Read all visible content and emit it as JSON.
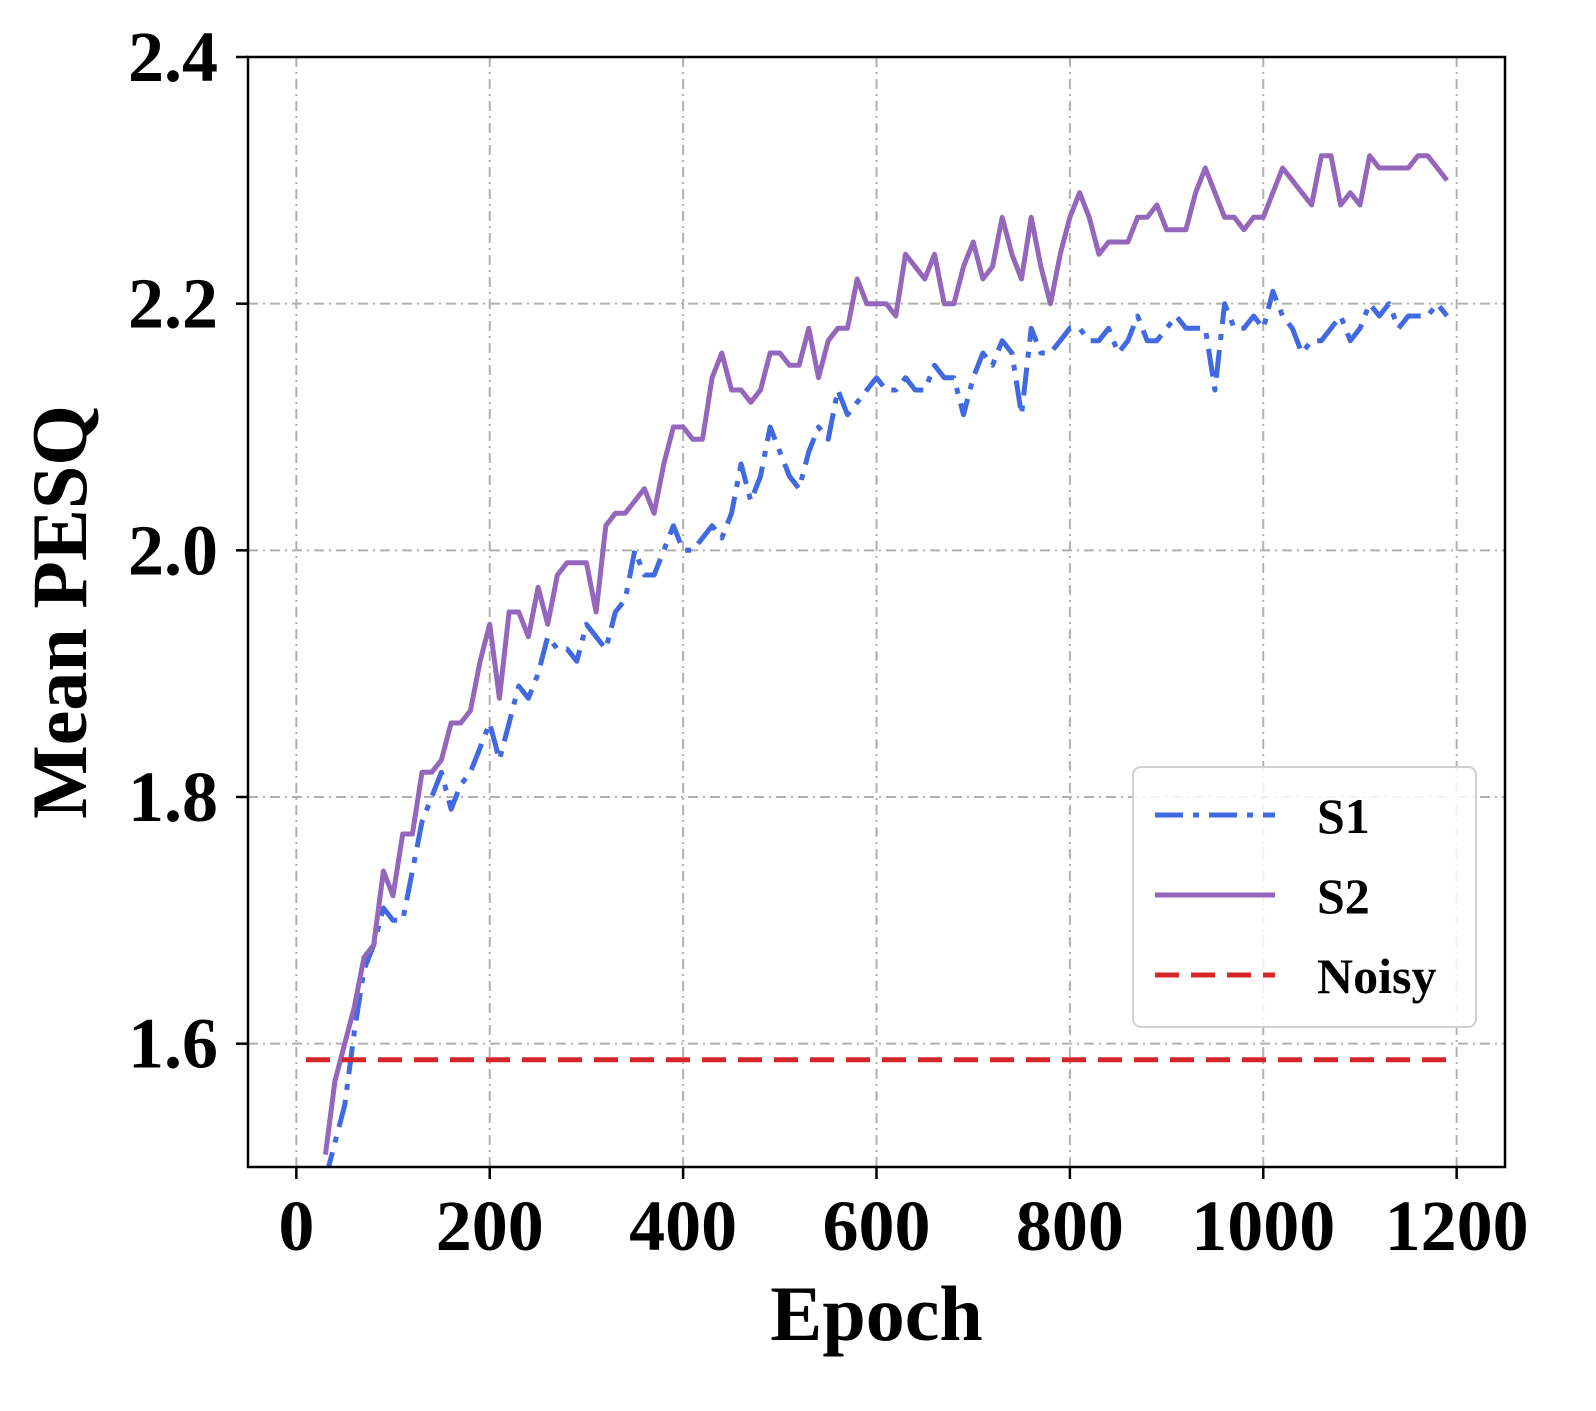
{
  "chart_data": {
    "type": "line",
    "xlabel": "Epoch",
    "ylabel": "Mean PESQ",
    "xlim": [
      -50,
      1250
    ],
    "ylim": [
      1.5,
      2.4
    ],
    "xticks": [
      0,
      200,
      400,
      600,
      800,
      1000,
      1200
    ],
    "yticks": [
      1.6,
      1.8,
      2.0,
      2.2,
      2.4
    ],
    "xtick_labels": [
      "0",
      "200",
      "400",
      "600",
      "800",
      "1000",
      "1200"
    ],
    "ytick_labels": [
      "1.6",
      "1.8",
      "2.0",
      "2.2",
      "2.4"
    ],
    "grid": true,
    "legend_position": "lower-right",
    "series": [
      {
        "name": "S1",
        "color": "#4169e1",
        "style": "dashdot",
        "x": [
          30,
          40,
          50,
          60,
          70,
          80,
          90,
          100,
          110,
          120,
          130,
          140,
          150,
          160,
          170,
          180,
          190,
          200,
          210,
          220,
          230,
          240,
          250,
          260,
          270,
          280,
          290,
          300,
          310,
          320,
          330,
          340,
          350,
          360,
          370,
          380,
          390,
          400,
          410,
          420,
          430,
          440,
          450,
          460,
          470,
          480,
          490,
          500,
          510,
          520,
          530,
          540,
          550,
          560,
          570,
          580,
          590,
          600,
          610,
          620,
          630,
          640,
          650,
          660,
          670,
          680,
          690,
          700,
          710,
          720,
          730,
          740,
          750,
          760,
          770,
          780,
          790,
          800,
          810,
          820,
          830,
          840,
          850,
          860,
          870,
          880,
          890,
          900,
          910,
          920,
          930,
          940,
          950,
          960,
          970,
          980,
          990,
          1000,
          1010,
          1020,
          1030,
          1040,
          1050,
          1060,
          1070,
          1080,
          1090,
          1100,
          1110,
          1120,
          1130,
          1140,
          1150,
          1160,
          1170,
          1180,
          1190
        ],
        "y": [
          1.49,
          1.52,
          1.55,
          1.61,
          1.66,
          1.68,
          1.71,
          1.7,
          1.7,
          1.74,
          1.78,
          1.8,
          1.82,
          1.79,
          1.81,
          1.82,
          1.84,
          1.86,
          1.83,
          1.86,
          1.89,
          1.88,
          1.9,
          1.93,
          1.92,
          1.92,
          1.91,
          1.94,
          1.93,
          1.92,
          1.95,
          1.96,
          2.0,
          1.98,
          1.98,
          2.0,
          2.02,
          2.0,
          2.0,
          2.01,
          2.02,
          2.01,
          2.03,
          2.07,
          2.04,
          2.06,
          2.1,
          2.08,
          2.06,
          2.05,
          2.08,
          2.1,
          2.09,
          2.13,
          2.11,
          2.12,
          2.13,
          2.14,
          2.13,
          2.13,
          2.14,
          2.13,
          2.13,
          2.15,
          2.14,
          2.14,
          2.11,
          2.14,
          2.16,
          2.15,
          2.17,
          2.16,
          2.11,
          2.18,
          2.16,
          2.16,
          2.17,
          2.18,
          2.18,
          2.17,
          2.17,
          2.18,
          2.16,
          2.17,
          2.19,
          2.17,
          2.17,
          2.18,
          2.19,
          2.18,
          2.18,
          2.18,
          2.13,
          2.2,
          2.18,
          2.18,
          2.19,
          2.18,
          2.21,
          2.19,
          2.18,
          2.16,
          2.17,
          2.17,
          2.18,
          2.19,
          2.17,
          2.18,
          2.2,
          2.19,
          2.2,
          2.18,
          2.19,
          2.19,
          2.19,
          2.2,
          2.19
        ]
      },
      {
        "name": "S2",
        "color": "#9467bd",
        "style": "solid",
        "x": [
          30,
          40,
          50,
          60,
          70,
          80,
          90,
          100,
          110,
          120,
          130,
          140,
          150,
          160,
          170,
          180,
          190,
          200,
          210,
          220,
          230,
          240,
          250,
          260,
          270,
          280,
          290,
          300,
          310,
          320,
          330,
          340,
          350,
          360,
          370,
          380,
          390,
          400,
          410,
          420,
          430,
          440,
          450,
          460,
          470,
          480,
          490,
          500,
          510,
          520,
          530,
          540,
          550,
          560,
          570,
          580,
          590,
          600,
          610,
          620,
          630,
          640,
          650,
          660,
          670,
          680,
          690,
          700,
          710,
          720,
          730,
          740,
          750,
          760,
          770,
          780,
          790,
          800,
          810,
          820,
          830,
          840,
          850,
          860,
          870,
          880,
          890,
          900,
          910,
          920,
          930,
          940,
          950,
          960,
          970,
          980,
          990,
          1000,
          1010,
          1020,
          1030,
          1040,
          1050,
          1060,
          1070,
          1080,
          1090,
          1100,
          1110,
          1120,
          1130,
          1140,
          1150,
          1160,
          1170,
          1180,
          1190
        ],
        "y": [
          1.51,
          1.57,
          1.6,
          1.63,
          1.67,
          1.68,
          1.74,
          1.72,
          1.77,
          1.77,
          1.82,
          1.82,
          1.83,
          1.86,
          1.86,
          1.87,
          1.91,
          1.94,
          1.88,
          1.95,
          1.95,
          1.93,
          1.97,
          1.94,
          1.98,
          1.99,
          1.99,
          1.99,
          1.95,
          2.02,
          2.03,
          2.03,
          2.04,
          2.05,
          2.03,
          2.07,
          2.1,
          2.1,
          2.09,
          2.09,
          2.14,
          2.16,
          2.13,
          2.13,
          2.12,
          2.13,
          2.16,
          2.16,
          2.15,
          2.15,
          2.18,
          2.14,
          2.17,
          2.18,
          2.18,
          2.22,
          2.2,
          2.2,
          2.2,
          2.19,
          2.24,
          2.23,
          2.22,
          2.24,
          2.2,
          2.2,
          2.23,
          2.25,
          2.22,
          2.23,
          2.27,
          2.24,
          2.22,
          2.27,
          2.23,
          2.2,
          2.24,
          2.27,
          2.29,
          2.27,
          2.24,
          2.25,
          2.25,
          2.25,
          2.27,
          2.27,
          2.28,
          2.26,
          2.26,
          2.26,
          2.29,
          2.31,
          2.29,
          2.27,
          2.27,
          2.26,
          2.27,
          2.27,
          2.29,
          2.31,
          2.3,
          2.29,
          2.28,
          2.32,
          2.32,
          2.28,
          2.29,
          2.28,
          2.32,
          2.31,
          2.31,
          2.31,
          2.31,
          2.32,
          2.32,
          2.31,
          2.3
        ]
      },
      {
        "name": "Noisy",
        "color": "#d62728",
        "style": "dashed",
        "x": [
          10,
          1190
        ],
        "y": [
          1.587,
          1.587
        ]
      }
    ]
  }
}
